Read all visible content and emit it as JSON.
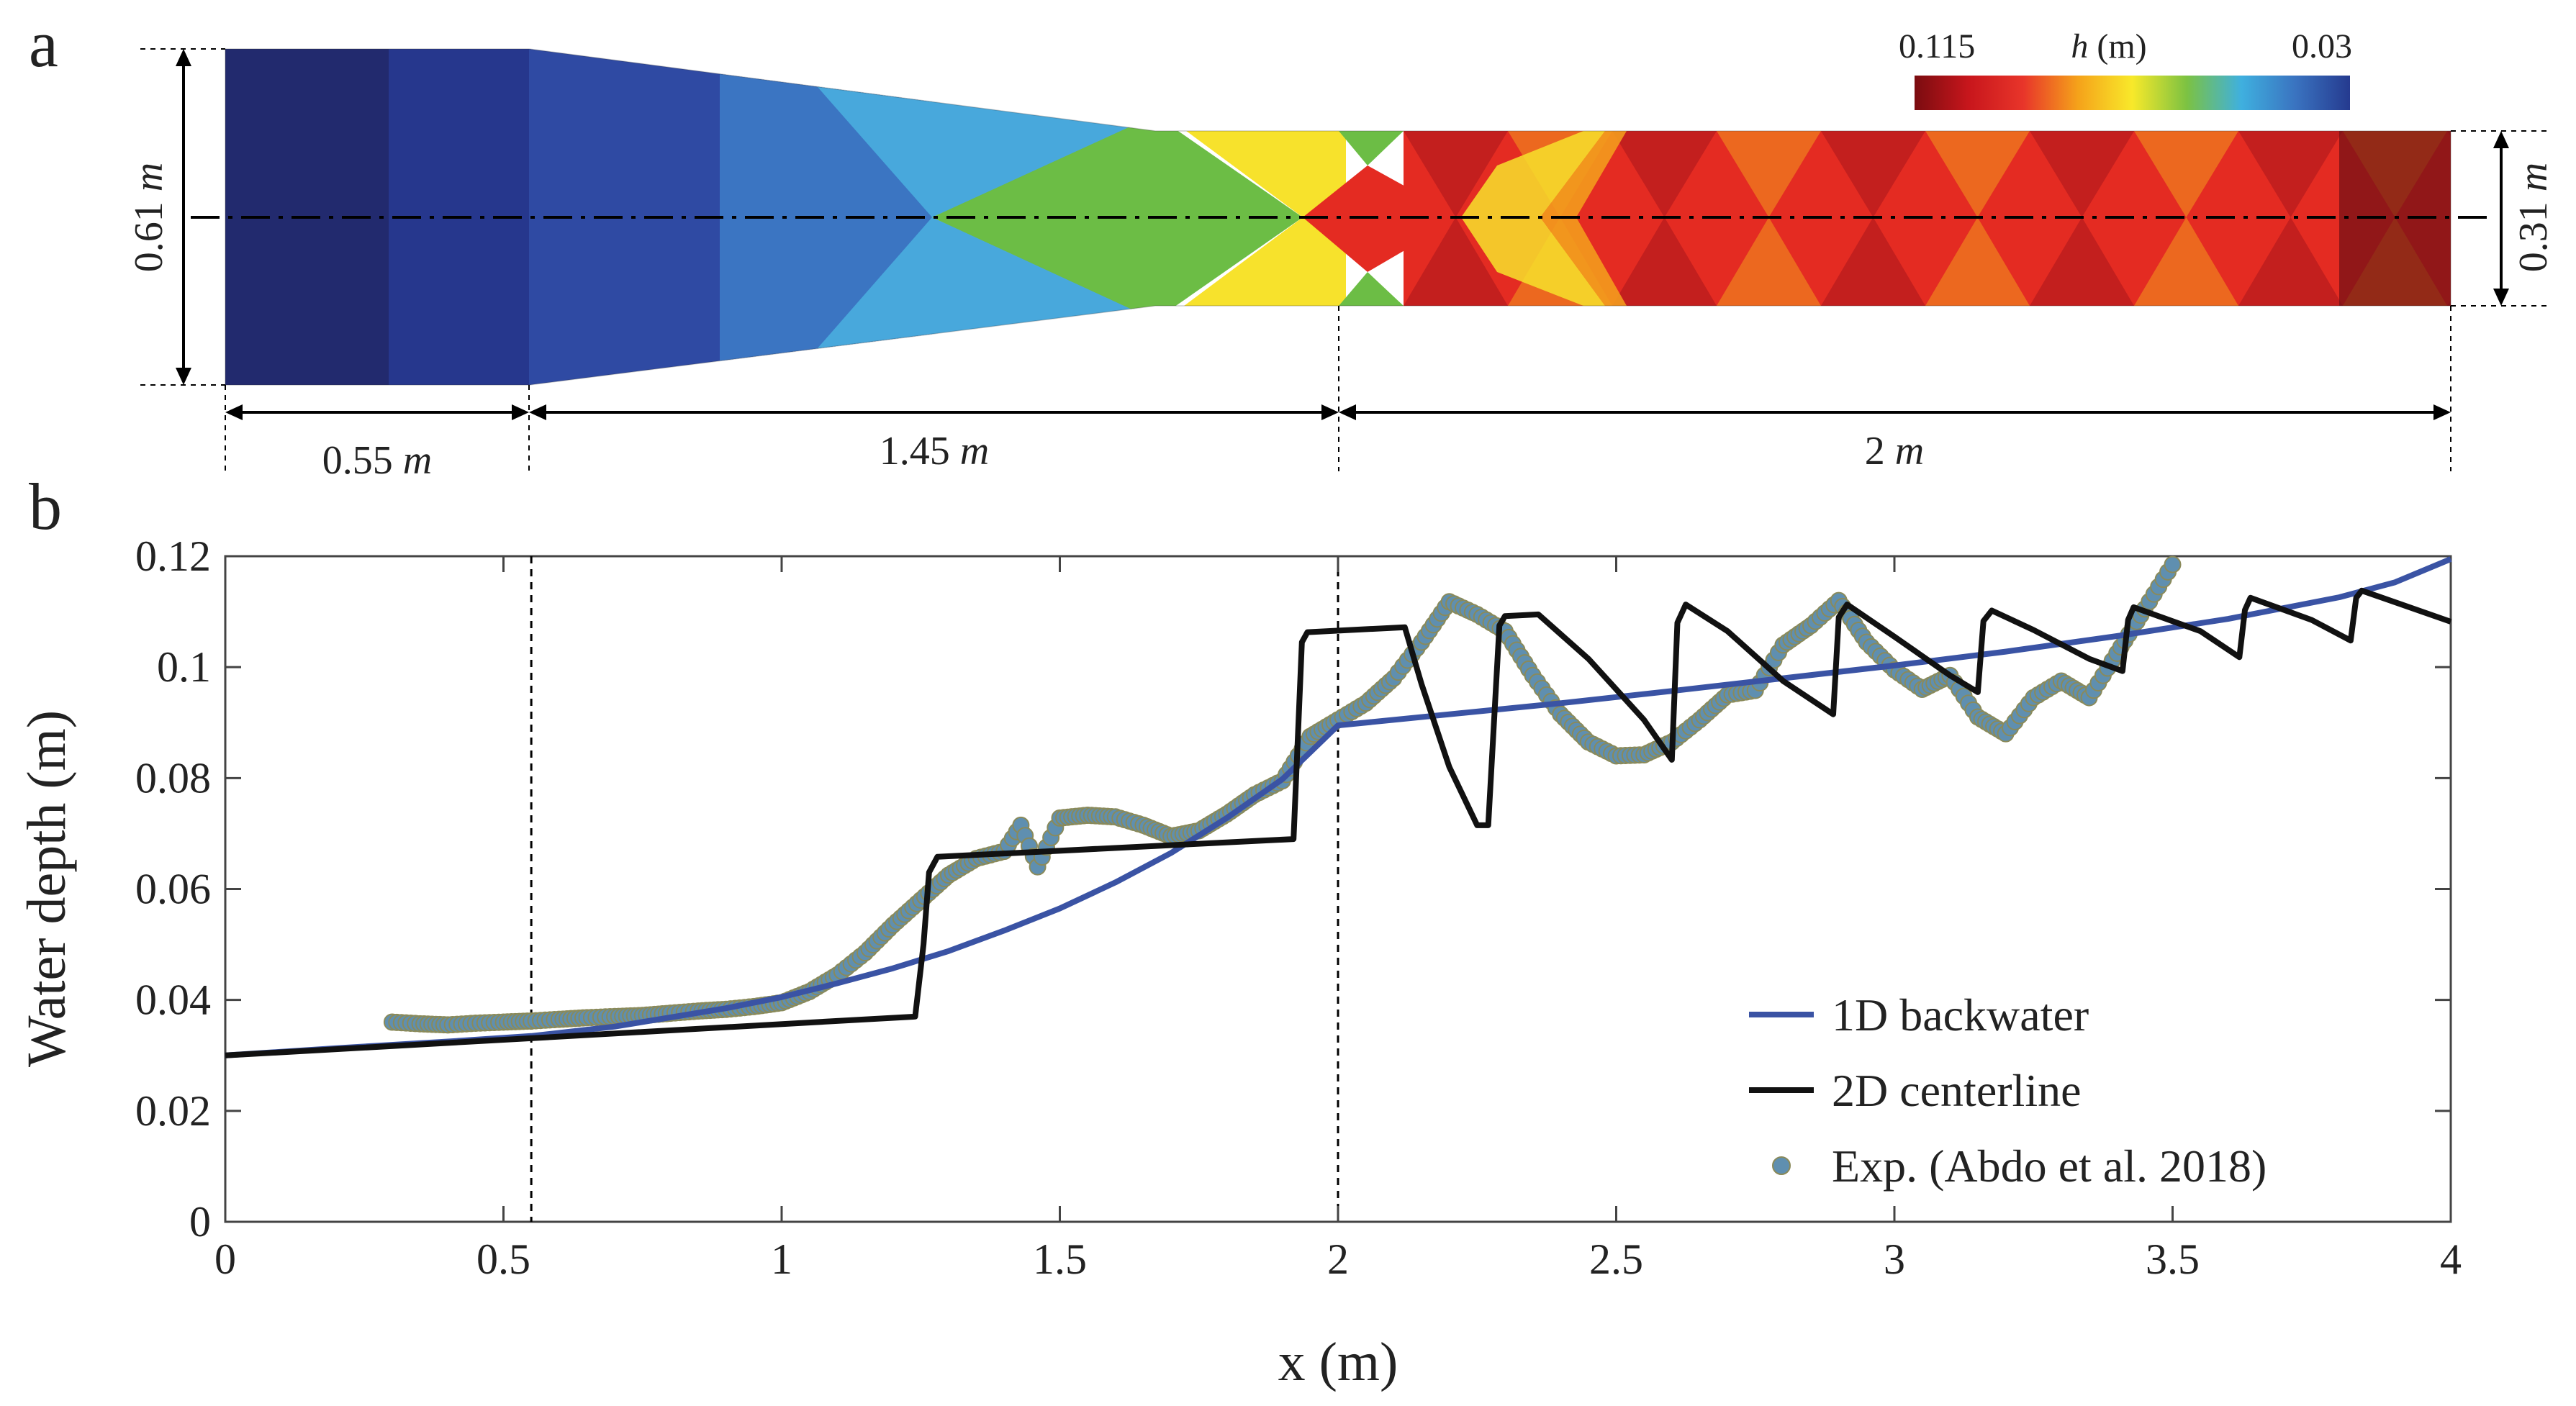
{
  "panels": {
    "a": "a",
    "b": "b"
  },
  "panel_a": {
    "colorbar": {
      "max_label": "0.115",
      "min_label": "0.03",
      "var_label": "h",
      "unit_label": " (m)",
      "stops": [
        "#7a0c10",
        "#c8161c",
        "#e8352a",
        "#f5a21a",
        "#f8e92a",
        "#7cc242",
        "#3fb0df",
        "#3a73c0",
        "#253a8f"
      ]
    },
    "dimensions": {
      "width_in": "0.61",
      "width_out": "0.31",
      "len_1": "0.55",
      "len_2": "1.45",
      "len_3": "2",
      "unit": "m"
    },
    "field_colors": {
      "inlet_dark": "#222a6e",
      "inlet": "#26378d",
      "blue_mid": "#2f4aa3",
      "blue_light": "#3b75c2",
      "cyan": "#48a8dc",
      "green": "#6cbd45",
      "yellow": "#f7e22c",
      "orange": "#f39b1d",
      "red": "#e42b22",
      "red_dark": "#a8151b",
      "dark_end": "#6e0f14"
    }
  },
  "chart_data": {
    "type": "line",
    "xlabel": "x (m)",
    "ylabel": "Water depth (m)",
    "xlim": [
      0,
      4
    ],
    "ylim": [
      0,
      0.12
    ],
    "xticks": [
      0,
      0.5,
      1,
      1.5,
      2,
      2.5,
      3,
      3.5,
      4
    ],
    "xtick_labels": [
      "0",
      "0.5",
      "1",
      "1.5",
      "2",
      "2.5",
      "3",
      "3.5",
      "4"
    ],
    "yticks": [
      0,
      0.02,
      0.04,
      0.06,
      0.08,
      0.1,
      0.12
    ],
    "ytick_labels": [
      "0",
      "0.02",
      "0.04",
      "0.06",
      "0.08",
      "0.1",
      "0.12"
    ],
    "vlines": [
      0.55,
      2.0
    ],
    "legend_position": "bottom-right",
    "series": [
      {
        "name": "1D backwater",
        "kind": "line",
        "color": "#3a53a4",
        "x": [
          0,
          0.2,
          0.4,
          0.55,
          0.7,
          0.9,
          1.0,
          1.1,
          1.2,
          1.3,
          1.4,
          1.5,
          1.6,
          1.7,
          1.8,
          1.9,
          2.0,
          2.2,
          2.4,
          2.6,
          2.8,
          3.0,
          3.2,
          3.4,
          3.6,
          3.8,
          3.9,
          4.0
        ],
        "y": [
          0.03,
          0.0313,
          0.0325,
          0.0335,
          0.0352,
          0.0385,
          0.0405,
          0.043,
          0.0457,
          0.0488,
          0.0525,
          0.0565,
          0.0612,
          0.0665,
          0.0728,
          0.0798,
          0.0895,
          0.0915,
          0.0935,
          0.0957,
          0.098,
          0.1003,
          0.1028,
          0.1056,
          0.1087,
          0.1126,
          0.1153,
          0.1195
        ]
      },
      {
        "name": "2D centerline",
        "kind": "line",
        "color": "#111111",
        "x": [
          0,
          1.24,
          1.255,
          1.265,
          1.28,
          1.92,
          1.935,
          1.945,
          2.12,
          2.15,
          2.2,
          2.25,
          2.27,
          2.29,
          2.3,
          2.36,
          2.45,
          2.55,
          2.6,
          2.61,
          2.625,
          2.7,
          2.8,
          2.89,
          2.9,
          2.915,
          3.0,
          3.1,
          3.15,
          3.16,
          3.175,
          3.25,
          3.35,
          3.41,
          3.42,
          3.43,
          3.55,
          3.62,
          3.63,
          3.64,
          3.75,
          3.82,
          3.83,
          3.84,
          4.0
        ],
        "y": [
          0.03,
          0.037,
          0.05,
          0.063,
          0.0658,
          0.069,
          0.1045,
          0.1063,
          0.1072,
          0.097,
          0.082,
          0.0715,
          0.0715,
          0.1075,
          0.1092,
          0.1095,
          0.1015,
          0.0905,
          0.0833,
          0.108,
          0.1113,
          0.1065,
          0.0975,
          0.0915,
          0.109,
          0.1113,
          0.1055,
          0.0985,
          0.0955,
          0.1083,
          0.1102,
          0.1067,
          0.1015,
          0.0993,
          0.1085,
          0.1108,
          0.1065,
          0.1018,
          0.1103,
          0.1125,
          0.1085,
          0.1048,
          0.1125,
          0.1138,
          0.1082
        ]
      },
      {
        "name": "Exp. (Abdo et al. 2018)",
        "kind": "markers",
        "color": "#5f8fb0",
        "edge_color": "#8a8a5a",
        "x": [
          0.3,
          0.35,
          0.4,
          0.45,
          0.5,
          0.55,
          0.6,
          0.65,
          0.7,
          0.75,
          0.8,
          0.85,
          0.9,
          0.95,
          1.0,
          1.05,
          1.1,
          1.15,
          1.2,
          1.25,
          1.3,
          1.35,
          1.4,
          1.43,
          1.46,
          1.5,
          1.55,
          1.6,
          1.65,
          1.7,
          1.75,
          1.8,
          1.85,
          1.9,
          1.95,
          2.0,
          2.05,
          2.1,
          2.15,
          2.2,
          2.25,
          2.3,
          2.35,
          2.4,
          2.45,
          2.5,
          2.55,
          2.6,
          2.65,
          2.7,
          2.75,
          2.8,
          2.85,
          2.9,
          2.95,
          3.0,
          3.05,
          3.1,
          3.15,
          3.2,
          3.25,
          3.3,
          3.35,
          3.4,
          3.45,
          3.5
        ],
        "y": [
          0.036,
          0.0357,
          0.0355,
          0.0358,
          0.036,
          0.0362,
          0.0365,
          0.0368,
          0.037,
          0.0372,
          0.0376,
          0.038,
          0.0383,
          0.0388,
          0.0395,
          0.0415,
          0.0445,
          0.0485,
          0.0535,
          0.058,
          0.0625,
          0.0655,
          0.0668,
          0.0715,
          0.064,
          0.0728,
          0.0733,
          0.073,
          0.0715,
          0.0695,
          0.0705,
          0.0735,
          0.077,
          0.0795,
          0.0875,
          0.0905,
          0.0935,
          0.098,
          0.1045,
          0.1118,
          0.1095,
          0.1065,
          0.0985,
          0.0915,
          0.0865,
          0.084,
          0.0842,
          0.0865,
          0.0905,
          0.095,
          0.0958,
          0.104,
          0.1075,
          0.112,
          0.1045,
          0.0995,
          0.096,
          0.0985,
          0.091,
          0.088,
          0.0945,
          0.0975,
          0.0945,
          0.1025,
          0.1105,
          0.1185
        ]
      }
    ]
  }
}
